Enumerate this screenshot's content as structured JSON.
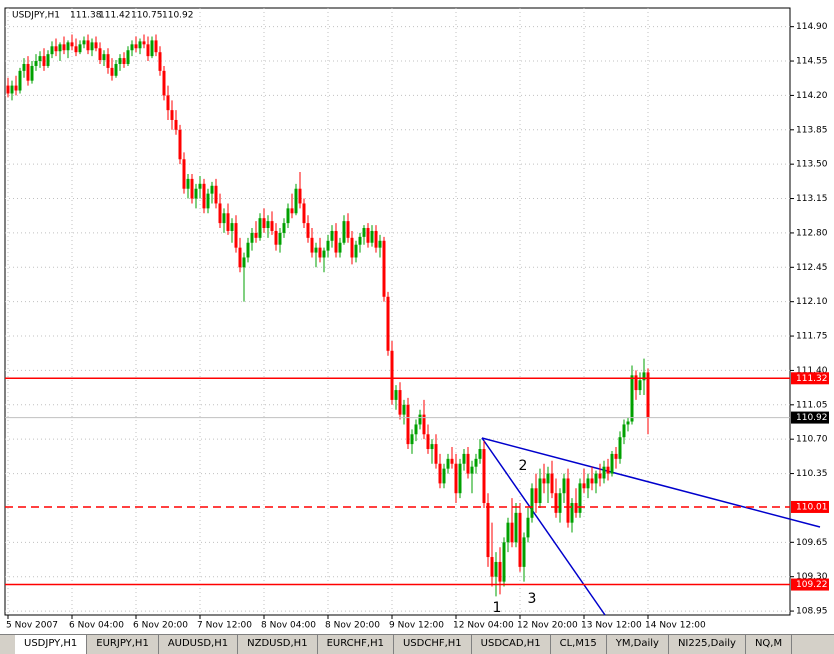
{
  "chart_data": {
    "type": "candlestick",
    "title": "USDJPY,H1",
    "ylim": [
      108.91,
      115.09
    ],
    "yticks": [
      {
        "value": 114.9,
        "label": "114.90"
      },
      {
        "value": 114.55,
        "label": "114.55"
      },
      {
        "value": 114.2,
        "label": "114.20"
      },
      {
        "value": 113.85,
        "label": "113.85"
      },
      {
        "value": 113.5,
        "label": "113.50"
      },
      {
        "value": 113.15,
        "label": "113.15"
      },
      {
        "value": 112.8,
        "label": "112.80"
      },
      {
        "value": 112.45,
        "label": "112.45"
      },
      {
        "value": 112.1,
        "label": "112.10"
      },
      {
        "value": 111.75,
        "label": "111.75"
      },
      {
        "value": 111.4,
        "label": "111.40"
      },
      {
        "value": 111.05,
        "label": "111.05"
      },
      {
        "value": 110.7,
        "label": "110.70"
      },
      {
        "value": 110.35,
        "label": "110.35"
      },
      {
        "value": 109.65,
        "label": "109.65"
      },
      {
        "value": 109.3,
        "label": "109.30"
      },
      {
        "value": 108.95,
        "label": "108.95"
      }
    ],
    "xticks": [
      {
        "value": 0,
        "label": "5 Nov 2007"
      },
      {
        "value": 16,
        "label": "6 Nov 04:00"
      },
      {
        "value": 32,
        "label": "6 Nov 20:00"
      },
      {
        "value": 48,
        "label": "7 Nov 12:00"
      },
      {
        "value": 64,
        "label": "8 Nov 04:00"
      },
      {
        "value": 80,
        "label": "8 Nov 20:00"
      },
      {
        "value": 96,
        "label": "9 Nov 12:00"
      },
      {
        "value": 112,
        "label": "12 Nov 04:00"
      },
      {
        "value": 128,
        "label": "12 Nov 20:00"
      },
      {
        "value": 144,
        "label": "13 Nov 12:00"
      },
      {
        "value": 160,
        "label": "14 Nov 12:00"
      }
    ],
    "grid": true,
    "up_color": "#00a000",
    "down_color": "#ff0000",
    "hlines": [
      {
        "value": 111.32,
        "color": "#ff0000",
        "style": "solid"
      },
      {
        "value": 110.01,
        "color": "#ff0000",
        "style": "dashed"
      },
      {
        "value": 109.22,
        "color": "#ff0000",
        "style": "solid"
      }
    ],
    "annotations": [
      "1",
      "2",
      "3"
    ],
    "ohlc": [
      [
        114.3,
        114.38,
        114.18,
        114.22
      ],
      [
        114.22,
        114.35,
        114.15,
        114.3
      ],
      [
        114.3,
        114.4,
        114.2,
        114.25
      ],
      [
        114.25,
        114.48,
        114.22,
        114.45
      ],
      [
        114.45,
        114.58,
        114.38,
        114.52
      ],
      [
        114.52,
        114.6,
        114.3,
        114.35
      ],
      [
        114.35,
        114.55,
        114.32,
        114.5
      ],
      [
        114.5,
        114.62,
        114.45,
        114.55
      ],
      [
        114.55,
        114.65,
        114.48,
        114.6
      ],
      [
        114.6,
        114.68,
        114.45,
        114.5
      ],
      [
        114.5,
        114.66,
        114.48,
        114.62
      ],
      [
        114.62,
        114.75,
        114.58,
        114.7
      ],
      [
        114.7,
        114.78,
        114.6,
        114.65
      ],
      [
        114.65,
        114.74,
        114.55,
        114.72
      ],
      [
        114.72,
        114.8,
        114.62,
        114.66
      ],
      [
        114.66,
        114.76,
        114.58,
        114.74
      ],
      [
        114.74,
        114.82,
        114.66,
        114.7
      ],
      [
        114.7,
        114.78,
        114.6,
        114.64
      ],
      [
        114.64,
        114.76,
        114.62,
        114.72
      ],
      [
        114.72,
        114.8,
        114.68,
        114.76
      ],
      [
        114.76,
        114.82,
        114.62,
        114.66
      ],
      [
        114.66,
        114.78,
        114.6,
        114.74
      ],
      [
        114.74,
        114.8,
        114.65,
        114.68
      ],
      [
        114.68,
        114.74,
        114.52,
        114.56
      ],
      [
        114.56,
        114.66,
        114.5,
        114.62
      ],
      [
        114.62,
        114.68,
        114.42,
        114.48
      ],
      [
        114.48,
        114.58,
        114.35,
        114.4
      ],
      [
        114.4,
        114.56,
        114.38,
        114.52
      ],
      [
        114.52,
        114.62,
        114.45,
        114.58
      ],
      [
        114.58,
        114.64,
        114.48,
        114.52
      ],
      [
        114.52,
        114.7,
        114.5,
        114.66
      ],
      [
        114.66,
        114.76,
        114.6,
        114.72
      ],
      [
        114.72,
        114.8,
        114.64,
        114.68
      ],
      [
        114.68,
        114.78,
        114.62,
        114.75
      ],
      [
        114.75,
        114.82,
        114.68,
        114.72
      ],
      [
        114.72,
        114.8,
        114.55,
        114.6
      ],
      [
        114.6,
        114.8,
        114.58,
        114.76
      ],
      [
        114.76,
        114.82,
        114.6,
        114.64
      ],
      [
        114.64,
        114.7,
        114.4,
        114.45
      ],
      [
        114.45,
        114.5,
        114.15,
        114.2
      ],
      [
        114.2,
        114.3,
        113.95,
        114.05
      ],
      [
        114.05,
        114.15,
        113.85,
        113.95
      ],
      [
        113.95,
        114.05,
        113.8,
        113.85
      ],
      [
        113.85,
        113.9,
        113.5,
        113.55
      ],
      [
        113.55,
        113.62,
        113.2,
        113.25
      ],
      [
        113.25,
        113.4,
        113.15,
        113.35
      ],
      [
        113.35,
        113.4,
        113.1,
        113.15
      ],
      [
        113.15,
        113.3,
        113.05,
        113.25
      ],
      [
        113.25,
        113.38,
        113.15,
        113.3
      ],
      [
        113.3,
        113.35,
        113.0,
        113.05
      ],
      [
        113.05,
        113.25,
        113.0,
        113.2
      ],
      [
        113.2,
        113.32,
        113.1,
        113.28
      ],
      [
        113.28,
        113.35,
        113.05,
        113.1
      ],
      [
        113.1,
        113.2,
        112.85,
        112.9
      ],
      [
        112.9,
        113.05,
        112.8,
        113.0
      ],
      [
        113.0,
        113.1,
        112.78,
        112.82
      ],
      [
        112.82,
        112.95,
        112.7,
        112.9
      ],
      [
        112.9,
        112.98,
        112.6,
        112.65
      ],
      [
        112.65,
        112.75,
        112.4,
        112.45
      ],
      [
        112.45,
        112.6,
        112.1,
        112.55
      ],
      [
        112.55,
        112.75,
        112.5,
        112.7
      ],
      [
        112.7,
        112.85,
        112.62,
        112.8
      ],
      [
        112.8,
        112.92,
        112.7,
        112.75
      ],
      [
        112.75,
        113.0,
        112.72,
        112.95
      ],
      [
        112.95,
        113.05,
        112.8,
        112.85
      ],
      [
        112.85,
        112.98,
        112.75,
        112.92
      ],
      [
        112.92,
        113.02,
        112.78,
        112.82
      ],
      [
        112.82,
        112.9,
        112.62,
        112.68
      ],
      [
        112.68,
        112.85,
        112.6,
        112.8
      ],
      [
        112.8,
        112.95,
        112.75,
        112.9
      ],
      [
        112.9,
        113.1,
        112.85,
        113.05
      ],
      [
        113.05,
        113.2,
        112.95,
        113.0
      ],
      [
        113.0,
        113.3,
        112.98,
        113.25
      ],
      [
        113.25,
        113.42,
        113.05,
        113.1
      ],
      [
        113.1,
        113.15,
        112.85,
        112.9
      ],
      [
        112.9,
        112.98,
        112.7,
        112.75
      ],
      [
        112.75,
        112.85,
        112.55,
        112.6
      ],
      [
        112.6,
        112.7,
        112.45,
        112.65
      ],
      [
        112.65,
        112.75,
        112.5,
        112.55
      ],
      [
        112.55,
        112.65,
        112.4,
        112.62
      ],
      [
        112.62,
        112.78,
        112.55,
        112.72
      ],
      [
        112.72,
        112.88,
        112.65,
        112.82
      ],
      [
        112.82,
        112.9,
        112.55,
        112.6
      ],
      [
        112.6,
        112.75,
        112.55,
        112.7
      ],
      [
        112.7,
        112.98,
        112.68,
        112.92
      ],
      [
        112.92,
        113.0,
        112.7,
        112.75
      ],
      [
        112.75,
        112.82,
        112.48,
        112.55
      ],
      [
        112.55,
        112.72,
        112.5,
        112.68
      ],
      [
        112.68,
        112.8,
        112.6,
        112.76
      ],
      [
        112.76,
        112.88,
        112.68,
        112.85
      ],
      [
        112.85,
        112.9,
        112.65,
        112.7
      ],
      [
        112.7,
        112.88,
        112.66,
        112.82
      ],
      [
        112.82,
        112.88,
        112.6,
        112.65
      ],
      [
        112.65,
        112.78,
        112.55,
        112.72
      ],
      [
        112.72,
        112.76,
        112.1,
        112.15
      ],
      [
        112.15,
        112.2,
        111.55,
        111.6
      ],
      [
        111.6,
        111.7,
        111.05,
        111.1
      ],
      [
        111.1,
        111.25,
        111.0,
        111.2
      ],
      [
        111.2,
        111.28,
        110.9,
        110.95
      ],
      [
        110.95,
        111.1,
        110.85,
        111.05
      ],
      [
        111.05,
        111.12,
        110.6,
        110.65
      ],
      [
        110.65,
        110.8,
        110.55,
        110.75
      ],
      [
        110.75,
        110.9,
        110.68,
        110.85
      ],
      [
        110.85,
        111.0,
        110.8,
        110.95
      ],
      [
        110.95,
        111.1,
        110.7,
        110.75
      ],
      [
        110.75,
        110.85,
        110.55,
        110.6
      ],
      [
        110.6,
        110.7,
        110.45,
        110.65
      ],
      [
        110.65,
        110.75,
        110.4,
        110.45
      ],
      [
        110.45,
        110.55,
        110.2,
        110.25
      ],
      [
        110.25,
        110.45,
        110.2,
        110.4
      ],
      [
        110.4,
        110.55,
        110.35,
        110.5
      ],
      [
        110.5,
        110.62,
        110.4,
        110.45
      ],
      [
        110.45,
        110.55,
        110.05,
        110.15
      ],
      [
        110.15,
        110.5,
        110.1,
        110.45
      ],
      [
        110.45,
        110.6,
        110.38,
        110.55
      ],
      [
        110.55,
        110.62,
        110.3,
        110.35
      ],
      [
        110.35,
        110.48,
        110.15,
        110.42
      ],
      [
        110.42,
        110.55,
        110.35,
        110.5
      ],
      [
        110.5,
        110.7,
        110.45,
        110.6
      ],
      [
        110.6,
        110.68,
        110.0,
        110.05
      ],
      [
        110.05,
        110.15,
        109.4,
        109.5
      ],
      [
        109.5,
        109.85,
        109.2,
        109.3
      ],
      [
        109.3,
        109.55,
        109.1,
        109.45
      ],
      [
        109.45,
        109.6,
        109.12,
        109.25
      ],
      [
        109.25,
        109.7,
        109.2,
        109.65
      ],
      [
        109.65,
        109.9,
        109.55,
        109.85
      ],
      [
        109.85,
        110.1,
        109.6,
        109.65
      ],
      [
        109.65,
        110.05,
        109.6,
        109.95
      ],
      [
        109.95,
        110.05,
        109.35,
        109.4
      ],
      [
        109.4,
        109.75,
        109.25,
        109.7
      ],
      [
        109.7,
        110.0,
        109.65,
        109.9
      ],
      [
        109.9,
        110.25,
        109.85,
        110.2
      ],
      [
        110.2,
        110.35,
        109.95,
        110.05
      ],
      [
        110.05,
        110.4,
        110.0,
        110.3
      ],
      [
        110.3,
        110.45,
        110.15,
        110.25
      ],
      [
        110.25,
        110.42,
        110.05,
        110.35
      ],
      [
        110.35,
        110.48,
        110.1,
        110.15
      ],
      [
        110.15,
        110.3,
        109.9,
        109.95
      ],
      [
        109.95,
        110.2,
        109.85,
        110.15
      ],
      [
        110.15,
        110.35,
        110.05,
        110.3
      ],
      [
        110.3,
        110.4,
        109.8,
        109.85
      ],
      [
        109.85,
        110.1,
        109.75,
        110.05
      ],
      [
        110.05,
        110.2,
        109.9,
        109.95
      ],
      [
        109.95,
        110.3,
        109.9,
        110.25
      ],
      [
        110.25,
        110.4,
        110.15,
        110.2
      ],
      [
        110.2,
        110.35,
        110.1,
        110.3
      ],
      [
        110.3,
        110.42,
        110.18,
        110.25
      ],
      [
        110.25,
        110.38,
        110.15,
        110.35
      ],
      [
        110.35,
        110.45,
        110.22,
        110.3
      ],
      [
        110.3,
        110.48,
        110.25,
        110.42
      ],
      [
        110.42,
        110.5,
        110.28,
        110.35
      ],
      [
        110.35,
        110.58,
        110.32,
        110.55
      ],
      [
        110.55,
        110.62,
        110.4,
        110.5
      ],
      [
        110.5,
        110.78,
        110.45,
        110.72
      ],
      [
        110.72,
        110.9,
        110.65,
        110.85
      ],
      [
        110.85,
        110.92,
        110.78,
        110.88
      ],
      [
        110.88,
        111.45,
        110.85,
        111.35
      ],
      [
        111.35,
        111.4,
        111.1,
        111.2
      ],
      [
        111.2,
        111.38,
        111.15,
        111.3
      ],
      [
        111.3,
        111.52,
        111.15,
        111.38
      ],
      [
        111.38,
        111.42,
        110.75,
        110.92
      ]
    ]
  },
  "tabs": [
    "USDJPY,H1",
    "EURJPY,H1",
    "AUDUSD,H1",
    "NZDUSD,H1",
    "EURCHF,H1",
    "USDCHF,H1",
    "USDCAD,H1",
    "CL,M15",
    "YM,Daily",
    "NI225,Daily",
    "NQ,M"
  ]
}
